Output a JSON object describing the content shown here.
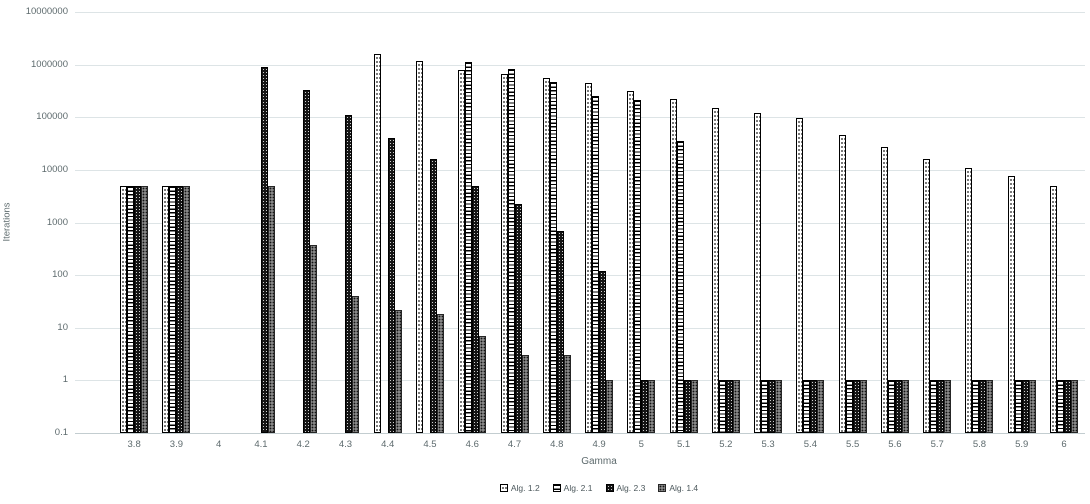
{
  "chart_data": {
    "type": "bar",
    "scale": "log",
    "title": "",
    "xlabel": "Gamma",
    "ylabel": "Iterations",
    "ylim": [
      0.1,
      10000000
    ],
    "grid": true,
    "legend_position": "bottom",
    "y_ticks": [
      "10000000",
      "1000000",
      "100000",
      "10000",
      "1000",
      "100",
      "10",
      "1",
      "0.1"
    ],
    "categories": [
      "3.8",
      "3.9",
      "4",
      "4.1",
      "4.2",
      "4.3",
      "4.4",
      "4.5",
      "4.6",
      "4.7",
      "4.8",
      "4.9",
      "5",
      "5.1",
      "5.2",
      "5.3",
      "5.4",
      "5.5",
      "5.6",
      "5.7",
      "5.8",
      "5.9",
      "6"
    ],
    "series": [
      {
        "name": "Alg. 1.2",
        "pattern": "white-dotted",
        "values": [
          5000,
          5000,
          null,
          null,
          null,
          null,
          1600000,
          1150000,
          800000,
          650000,
          560000,
          450000,
          320000,
          220000,
          150000,
          120000,
          95000,
          46000,
          27000,
          16000,
          11000,
          7500,
          5000
        ]
      },
      {
        "name": "Alg. 2.1",
        "pattern": "horizontal-stripes",
        "values": [
          5000,
          5000,
          null,
          null,
          null,
          null,
          null,
          null,
          1100000,
          820000,
          460000,
          250000,
          210000,
          35000,
          1,
          1,
          1,
          1,
          1,
          1,
          1,
          1,
          1
        ]
      },
      {
        "name": "Alg. 2.3",
        "pattern": "black-speckled",
        "values": [
          5000,
          5000,
          null,
          900000,
          330000,
          110000,
          40000,
          16000,
          5000,
          2200,
          700,
          120,
          1,
          1,
          1,
          1,
          1,
          1,
          1,
          1,
          1,
          1,
          1
        ]
      },
      {
        "name": "Alg. 1.4",
        "pattern": "gray-checkered",
        "values": [
          5000,
          5000,
          null,
          5000,
          380,
          40,
          22,
          18,
          7,
          3,
          3,
          1,
          1,
          1,
          1,
          1,
          1,
          1,
          1,
          1,
          1,
          1,
          1
        ]
      }
    ],
    "colors": {
      "label": "#5d6a6d",
      "gridline": "#dde4e6",
      "axis_line": "#c3cdd0",
      "bar_black": "#151515",
      "bar_gray": "#7a7a7a",
      "bar_white": "#ffffff",
      "bar_border": "#000000"
    }
  }
}
